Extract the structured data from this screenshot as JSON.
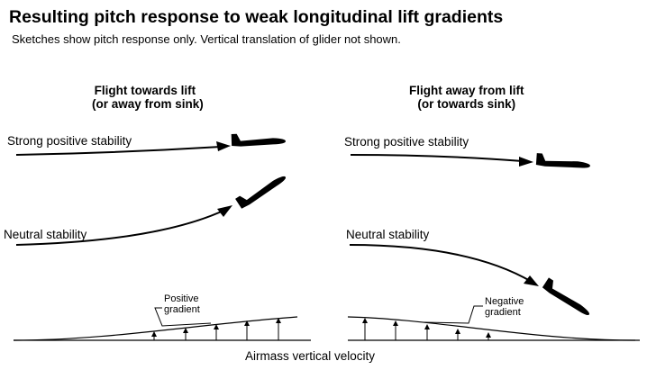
{
  "title": "Resulting pitch response to weak longitudinal lift gradients",
  "subtitle": "Sketches show pitch response only.  Vertical translation of glider not shown.",
  "left_column": {
    "heading_line1": "Flight towards lift",
    "heading_line2": "(or away from sink)",
    "strong_label": "Strong positive stability",
    "neutral_label": "Neutral stability",
    "gradient_label_line1": "Positive",
    "gradient_label_line2": "gradient"
  },
  "right_column": {
    "heading_line1": "Flight away from lift",
    "heading_line2": "(or towards sink)",
    "strong_label": "Strong positive stability",
    "neutral_label": "Neutral stability",
    "gradient_label_line1": "Negative",
    "gradient_label_line2": "gradient"
  },
  "axis_label": "Airmass vertical velocity"
}
